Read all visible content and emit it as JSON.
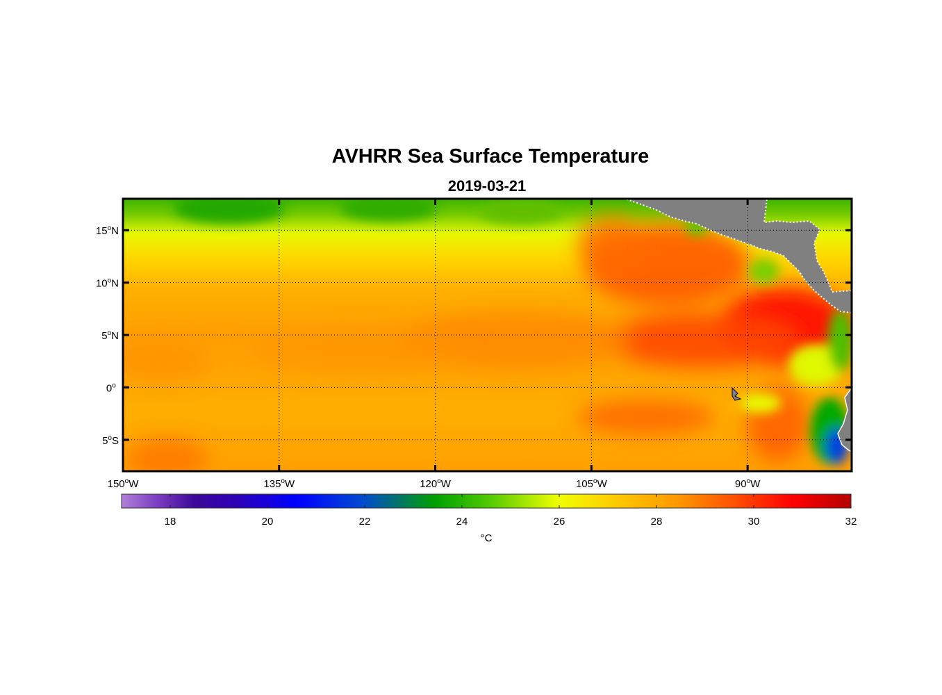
{
  "chart_data": {
    "type": "heatmap",
    "title": "AVHRR Sea Surface Temperature",
    "subtitle": "2019-03-21",
    "x_ticks": [
      {
        "value": -150,
        "deg": "150",
        "hem": "W"
      },
      {
        "value": -135,
        "deg": "135",
        "hem": "W"
      },
      {
        "value": -120,
        "deg": "120",
        "hem": "W"
      },
      {
        "value": -105,
        "deg": "105",
        "hem": "W"
      },
      {
        "value": -90,
        "deg": "90",
        "hem": "W"
      }
    ],
    "y_ticks": [
      {
        "value": 15,
        "deg": "15",
        "hem": "N"
      },
      {
        "value": 10,
        "deg": "10",
        "hem": "N"
      },
      {
        "value": 5,
        "deg": "5",
        "hem": "N"
      },
      {
        "value": 0,
        "deg": "0",
        "hem": ""
      },
      {
        "value": -5,
        "deg": "5",
        "hem": "S"
      }
    ],
    "lon_range": [
      -150,
      -80
    ],
    "lat_range": [
      -8,
      18
    ],
    "grid": true,
    "colorbar": {
      "range": [
        17,
        32
      ],
      "ticks": [
        18,
        20,
        22,
        24,
        26,
        28,
        30,
        32
      ],
      "unit": "°C",
      "colors": [
        "#b080d8",
        "#7a3cc0",
        "#3c0898",
        "#2c00b8",
        "#0000ff",
        "#004ad0",
        "#00a000",
        "#4cc800",
        "#f0ff00",
        "#ffc800",
        "#ff9a00",
        "#ff5000",
        "#ff0000",
        "#b40000"
      ]
    },
    "colors": {
      "land": "#808080",
      "frame": "#000000"
    }
  }
}
